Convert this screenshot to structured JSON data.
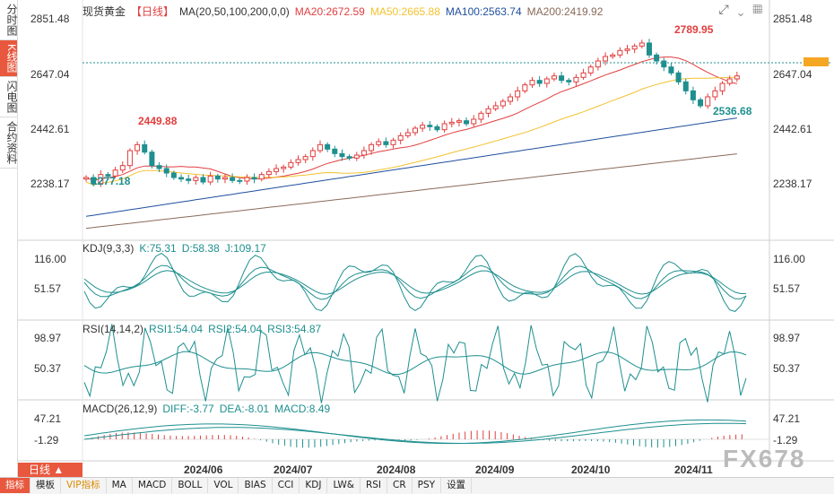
{
  "left_tabs": [
    "分时图",
    "K线图",
    "闪电图",
    "合约资料"
  ],
  "active_left_tab": 1,
  "main": {
    "title": "现货黄金",
    "period_tag": "【日线】",
    "ma_label": "MA(20,50,100,200,0,0)",
    "ma20": "MA20:2672.59",
    "ma50": "MA50:2665.88",
    "ma100": "MA100:2563.74",
    "ma200": "MA200:2419.92",
    "colors": {
      "ma20": "#e23e3e",
      "ma50": "#f2c230",
      "ma100": "#1f4e9e",
      "ma200": "#8a6a5a",
      "up": "#e23e3e",
      "down": "#1f8f8f"
    },
    "y_labels": [
      "2851.48",
      "2647.04",
      "2442.61",
      "2238.17"
    ],
    "high_annotation": "2789.95",
    "low_annotation": "2536.68",
    "left_high_annotation": "2449.88",
    "left_low_annotation": "2277.18"
  },
  "kdj": {
    "label": "KDJ(9,3,3)",
    "k": "K:75.31",
    "d": "D:58.38",
    "j": "J:109.17",
    "y_labels": [
      "116.00",
      "51.57"
    ]
  },
  "rsi": {
    "label": "RSI(14,14,2)",
    "rsi1": "RSI1:54.04",
    "rsi2": "RSI2:54.04",
    "rsi3": "RSI3:54.87",
    "y_labels": [
      "98.97",
      "50.37"
    ]
  },
  "macd": {
    "label": "MACD(26,12,9)",
    "diff": "DIFF:-3.77",
    "dea": "DEA:-8.01",
    "macd": "MACD:8.49",
    "y_labels": [
      "47.21",
      "-1.29"
    ]
  },
  "x_labels": [
    "2024/06",
    "2024/07",
    "2024/08",
    "2024/09",
    "2024/10",
    "2024/11"
  ],
  "period_button": "日线 ▲",
  "bottom_tabs": [
    "指标",
    "模板",
    "VIP指标",
    "MA",
    "MACD",
    "BOLL",
    "VOL",
    "BIAS",
    "CCI",
    "KDJ",
    "LW&",
    "RSI",
    "CR",
    "PSY",
    "设置"
  ],
  "watermark": "FX678",
  "chart_data": {
    "type": "candlestick",
    "title": "现货黄金 日线",
    "ylim": [
      2180,
      2870
    ],
    "close_series": [
      2330,
      2310,
      2340,
      2335,
      2355,
      2370,
      2420,
      2440,
      2415,
      2370,
      2360,
      2345,
      2330,
      2325,
      2320,
      2330,
      2315,
      2335,
      2325,
      2330,
      2320,
      2318,
      2330,
      2325,
      2340,
      2350,
      2360,
      2365,
      2380,
      2390,
      2400,
      2420,
      2440,
      2425,
      2410,
      2400,
      2395,
      2405,
      2420,
      2440,
      2450,
      2440,
      2455,
      2470,
      2480,
      2495,
      2505,
      2500,
      2490,
      2510,
      2515,
      2520,
      2510,
      2525,
      2545,
      2560,
      2570,
      2585,
      2600,
      2620,
      2640,
      2655,
      2645,
      2660,
      2670,
      2655,
      2650,
      2665,
      2680,
      2700,
      2720,
      2735,
      2740,
      2755,
      2760,
      2770,
      2780,
      2740,
      2720,
      2700,
      2680,
      2650,
      2620,
      2590,
      2570,
      2600,
      2620,
      2645,
      2660,
      2670
    ]
  }
}
